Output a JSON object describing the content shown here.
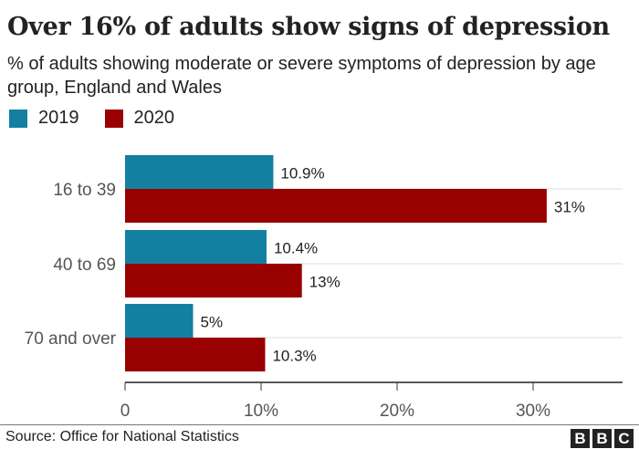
{
  "chart_data": {
    "type": "bar",
    "orientation": "horizontal",
    "title": "Over 16% of adults show signs of depression",
    "subtitle": "% of adults showing moderate or severe symptoms of depression by age group, England and Wales",
    "categories": [
      "16 to 39",
      "40 to 69",
      "70 and over"
    ],
    "series": [
      {
        "name": "2019",
        "color": "#1380A1",
        "values": [
          10.9,
          10.4,
          5
        ],
        "labels": [
          "10.9%",
          "10.4%",
          "5%"
        ]
      },
      {
        "name": "2020",
        "color": "#990000",
        "values": [
          31,
          13,
          10.3
        ],
        "labels": [
          "31%",
          "13%",
          "10.3%"
        ]
      }
    ],
    "xlim": [
      0,
      36.6
    ],
    "xticks": [
      0,
      10,
      20,
      30
    ],
    "xtick_labels": [
      "0",
      "10%",
      "20%",
      "30%"
    ],
    "grid": true,
    "legend_position": "top-left"
  },
  "footer": {
    "source": "Source: Office for National Statistics",
    "logo": "BBC"
  }
}
